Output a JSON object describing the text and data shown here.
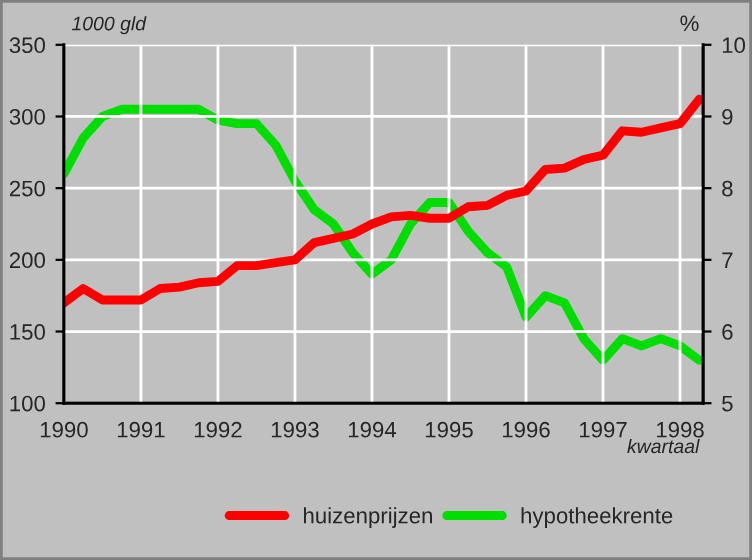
{
  "chart_data": {
    "type": "line",
    "ylabel": "1000 gld",
    "y2label": "%",
    "xlabel": "kwartaal",
    "x": [
      1990,
      1990.25,
      1990.5,
      1990.75,
      1991,
      1991.25,
      1991.5,
      1991.75,
      1992,
      1992.25,
      1992.5,
      1992.75,
      1993,
      1993.25,
      1993.5,
      1993.75,
      1994,
      1994.25,
      1994.5,
      1994.75,
      1995,
      1995.25,
      1995.5,
      1995.75,
      1996,
      1996.25,
      1996.5,
      1996.75,
      1997,
      1997.25,
      1997.5,
      1997.75,
      1998,
      1998.25
    ],
    "series": [
      {
        "name": "huizenprijzen",
        "color": "#ff0000",
        "values": [
          170,
          180,
          172,
          172,
          172,
          180,
          181,
          184,
          185,
          196,
          196,
          198,
          200,
          212,
          215,
          218,
          225,
          230,
          231,
          229,
          229,
          237,
          238,
          245,
          248,
          263,
          264,
          270,
          273,
          290,
          289,
          292,
          295,
          312
        ]
      },
      {
        "name": "hypotheekrente",
        "color": "#00dd00",
        "axis": "y2",
        "values": [
          8.2,
          8.7,
          9.0,
          9.1,
          9.1,
          9.1,
          9.1,
          9.1,
          8.95,
          8.9,
          8.9,
          8.6,
          8.1,
          7.7,
          7.5,
          7.1,
          6.8,
          7.0,
          7.5,
          7.8,
          7.8,
          7.4,
          7.1,
          6.9,
          6.2,
          6.5,
          6.4,
          5.9,
          5.6,
          5.9,
          5.8,
          5.9,
          5.8,
          5.6
        ]
      }
    ],
    "xlim": [
      1990,
      1998.3
    ],
    "xticks": [
      1990,
      1991,
      1992,
      1993,
      1994,
      1995,
      1996,
      1997,
      1998
    ],
    "ylim": [
      100,
      350
    ],
    "yticks": [
      100,
      150,
      200,
      250,
      300,
      350
    ],
    "y2lim": [
      5,
      10
    ],
    "y2ticks": [
      5,
      6,
      7,
      8,
      9,
      10
    ],
    "grid": true,
    "legend": "bottom",
    "line_style": "solid",
    "marker": "none"
  }
}
